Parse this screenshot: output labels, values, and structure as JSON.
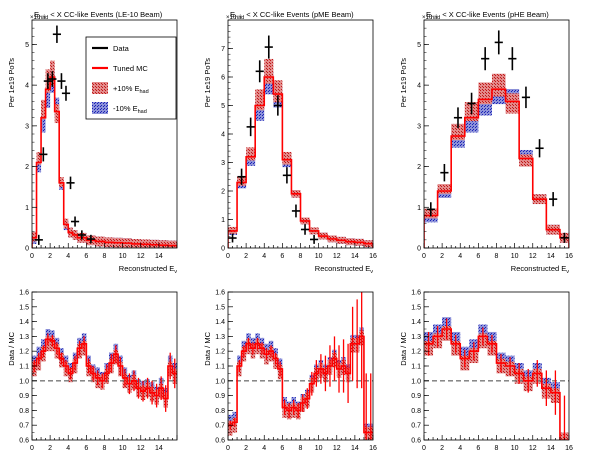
{
  "chart_data": [
    {
      "panel": "top-left",
      "type": "line",
      "title": "E_had < X CC-like Events (LE-10 Beam)",
      "title_parts": [
        "E",
        "had",
        " < X CC-like Events (LE-10 Beam)"
      ],
      "xlabel": "Reconstructed E",
      "xlabel_sub": "ν",
      "ylabel": "Per 1e19 PoTs",
      "y_exponent": "×10⁻³",
      "xlim": [
        0,
        16
      ],
      "ylim": [
        0,
        5.6
      ],
      "xticks": [
        0,
        2,
        4,
        6,
        8,
        10,
        12,
        14
      ],
      "yticks": [
        0,
        1,
        2,
        3,
        4,
        5
      ],
      "legend": {
        "placement": "top-right",
        "entries": [
          "Data",
          "Tuned MC",
          "+10% E_had",
          "-10% E_had"
        ],
        "entry_parts": [
          [
            "Data",
            ""
          ],
          [
            "Tuned MC",
            ""
          ],
          [
            "+10% E",
            "had"
          ],
          [
            "-10% E",
            "had"
          ]
        ]
      },
      "edges": [
        0,
        0.5,
        1,
        1.5,
        2,
        2.5,
        3,
        3.5,
        4,
        4.5,
        5,
        6,
        7,
        8,
        9,
        10,
        11,
        12,
        13,
        14,
        15,
        16
      ],
      "series": [
        {
          "name": "Data",
          "x": [
            0.75,
            1.25,
            1.75,
            2.25,
            2.75,
            3.25,
            3.75,
            4.25,
            4.75,
            5.5,
            6.5
          ],
          "values": [
            0.2,
            2.3,
            4.1,
            4.15,
            5.25,
            4.1,
            3.8,
            1.6,
            0.65,
            0.32,
            0.22
          ],
          "err": [
            0.05,
            0.1,
            0.12,
            0.12,
            0.14,
            0.12,
            0.11,
            0.08,
            0.05,
            0.04,
            0.03
          ]
        },
        {
          "name": "Tuned MC",
          "values": [
            0.25,
            2.1,
            3.2,
            3.9,
            4.2,
            3.35,
            1.6,
            0.58,
            0.38,
            0.32,
            0.25,
            0.19,
            0.16,
            0.14,
            0.13,
            0.12,
            0.1,
            0.09,
            0.08,
            0.07,
            0.06
          ]
        },
        {
          "name": "+10% E_had",
          "values": [
            0.28,
            2.2,
            3.4,
            4.1,
            4.3,
            3.3,
            1.62,
            0.6,
            0.38,
            0.32,
            0.25,
            0.19,
            0.16,
            0.14,
            0.13,
            0.12,
            0.1,
            0.09,
            0.08,
            0.07,
            0.06
          ]
        },
        {
          "name": "-10% E_had",
          "values": [
            0.22,
            2.0,
            3.05,
            3.7,
            4.1,
            3.45,
            1.55,
            0.56,
            0.38,
            0.32,
            0.25,
            0.19,
            0.16,
            0.14,
            0.13,
            0.12,
            0.1,
            0.09,
            0.08,
            0.07,
            0.06
          ]
        }
      ]
    },
    {
      "panel": "top-middle",
      "type": "line",
      "title": "E_had < X CC-like Events (pME Beam)",
      "title_parts": [
        "E",
        "had",
        " < X CC-like Events (pME Beam)"
      ],
      "xlabel": "Reconstructed E",
      "xlabel_sub": "ν",
      "ylabel": "Per 1e19 PoTs",
      "y_exponent": "×10⁻³",
      "xlim": [
        0,
        16
      ],
      "ylim": [
        0,
        8.0
      ],
      "xticks": [
        0,
        2,
        4,
        6,
        8,
        10,
        12,
        14,
        16
      ],
      "yticks": [
        0,
        1,
        2,
        3,
        4,
        5,
        6,
        7
      ],
      "edges": [
        0,
        1,
        2,
        3,
        4,
        5,
        6,
        7,
        8,
        9,
        10,
        11,
        12,
        13,
        14,
        15,
        16
      ],
      "series": [
        {
          "name": "Data",
          "x": [
            0.5,
            1.5,
            2.5,
            3.5,
            4.5,
            5.5,
            6.5,
            7.5,
            8.5,
            9.5
          ],
          "values": [
            0.35,
            2.5,
            4.25,
            6.2,
            7.05,
            5.0,
            2.55,
            1.3,
            0.65,
            0.3
          ],
          "err": [
            0.05,
            0.18,
            0.22,
            0.28,
            0.3,
            0.25,
            0.18,
            0.12,
            0.08,
            0.05
          ]
        },
        {
          "name": "Tuned MC",
          "values": [
            0.6,
            2.3,
            3.2,
            5.0,
            6.0,
            5.4,
            3.1,
            1.9,
            0.95,
            0.6,
            0.42,
            0.32,
            0.27,
            0.22,
            0.2,
            0.15
          ]
        },
        {
          "name": "+10% E_had",
          "values": [
            0.62,
            2.35,
            3.3,
            5.2,
            6.2,
            5.5,
            3.15,
            1.9,
            0.95,
            0.6,
            0.42,
            0.32,
            0.27,
            0.22,
            0.2,
            0.15
          ]
        },
        {
          "name": "-10% E_had",
          "values": [
            0.58,
            2.25,
            3.1,
            4.8,
            5.8,
            5.3,
            3.05,
            1.9,
            0.95,
            0.6,
            0.42,
            0.32,
            0.27,
            0.22,
            0.2,
            0.15
          ]
        }
      ]
    },
    {
      "panel": "top-right",
      "type": "line",
      "title": "E_had < X CC-like Events (pHE Beam)",
      "title_parts": [
        "E",
        "had",
        " < X CC-like Events (pHE Beam)"
      ],
      "xlabel": "Reconstructed E",
      "xlabel_sub": "ν",
      "ylabel": "Per 1e19 PoTs",
      "y_exponent": "×10⁻³",
      "xlim": [
        0,
        16
      ],
      "ylim": [
        0,
        5.6
      ],
      "xticks": [
        0,
        2,
        4,
        6,
        8,
        10,
        12,
        14,
        16
      ],
      "yticks": [
        0,
        1,
        2,
        3,
        4,
        5
      ],
      "edges": [
        0,
        1.5,
        3,
        4.5,
        6,
        7.5,
        9,
        10.5,
        12,
        13.5,
        15,
        16
      ],
      "series": [
        {
          "name": "Data",
          "x": [
            0.75,
            2.25,
            3.75,
            5.25,
            6.75,
            8.25,
            9.75,
            11.25,
            12.75,
            14.25,
            15.5
          ],
          "values": [
            0.95,
            1.85,
            3.2,
            3.55,
            4.65,
            5.05,
            4.65,
            3.7,
            2.45,
            1.2,
            0.25
          ],
          "err": [
            0.1,
            0.14,
            0.18,
            0.19,
            0.21,
            0.22,
            0.21,
            0.19,
            0.15,
            0.1,
            0.05
          ]
        },
        {
          "name": "Tuned MC",
          "values": [
            0.8,
            1.4,
            2.75,
            3.2,
            3.65,
            3.9,
            3.6,
            2.2,
            1.2,
            0.45,
            0.25
          ]
        },
        {
          "name": "+10% E_had",
          "values": [
            0.85,
            1.45,
            2.85,
            3.35,
            3.8,
            4.0,
            3.55,
            2.15,
            1.2,
            0.45,
            0.25
          ]
        },
        {
          "name": "-10% E_had",
          "values": [
            0.75,
            1.35,
            2.65,
            3.05,
            3.5,
            3.8,
            3.65,
            2.25,
            1.2,
            0.45,
            0.25
          ]
        }
      ]
    },
    {
      "panel": "bottom-left",
      "type": "line",
      "ylabel": "Data / MC",
      "xlim": [
        0,
        16
      ],
      "ylim": [
        0.6,
        1.6
      ],
      "xticks": [
        0,
        2,
        4,
        6,
        8,
        10,
        12,
        14
      ],
      "yticks": [
        0.6,
        0.7,
        0.8,
        0.9,
        1.0,
        1.1,
        1.2,
        1.3,
        1.4,
        1.5,
        1.6
      ],
      "reference_line": 1.0,
      "edges": [
        0,
        0.5,
        1,
        1.5,
        2,
        2.5,
        3,
        3.5,
        4,
        4.5,
        5,
        5.5,
        6,
        6.5,
        7,
        7.5,
        8,
        8.5,
        9,
        9.5,
        10,
        10.5,
        11,
        11.5,
        12,
        12.5,
        13,
        13.5,
        14,
        14.5,
        15,
        15.5,
        16
      ],
      "series": [
        {
          "name": "Data / Tuned MC",
          "values": [
            1.1,
            1.15,
            1.2,
            1.28,
            1.27,
            1.22,
            1.15,
            1.1,
            1.05,
            1.12,
            1.22,
            1.25,
            1.1,
            1.05,
            1.02,
            1.0,
            1.05,
            1.12,
            1.18,
            1.1,
            1.02,
            0.98,
            1.0,
            0.95,
            0.93,
            0.95,
            0.92,
            0.9,
            0.95,
            0.88,
            1.1,
            1.05
          ],
          "err": [
            0.04,
            0.04,
            0.04,
            0.04,
            0.04,
            0.04,
            0.04,
            0.04,
            0.04,
            0.05,
            0.05,
            0.05,
            0.05,
            0.05,
            0.05,
            0.05,
            0.06,
            0.06,
            0.06,
            0.06,
            0.06,
            0.07,
            0.07,
            0.07,
            0.07,
            0.07,
            0.08,
            0.08,
            0.08,
            0.09,
            0.09,
            0.1
          ]
        },
        {
          "name": "+10% E_had",
          "values": [
            1.08,
            1.12,
            1.18,
            1.25,
            1.25,
            1.2,
            1.14,
            1.08,
            1.04,
            1.1,
            1.2,
            1.22,
            1.08,
            1.04,
            1.0,
            0.99,
            1.03,
            1.1,
            1.16,
            1.08,
            1.0,
            0.97,
            0.99,
            0.94,
            0.92,
            0.94,
            0.91,
            0.89,
            0.93,
            0.87,
            1.08,
            1.03
          ]
        },
        {
          "name": "-10% E_had",
          "values": [
            1.12,
            1.18,
            1.23,
            1.3,
            1.29,
            1.24,
            1.17,
            1.12,
            1.07,
            1.14,
            1.24,
            1.27,
            1.12,
            1.06,
            1.04,
            1.01,
            1.07,
            1.14,
            1.2,
            1.12,
            1.04,
            0.99,
            1.02,
            0.96,
            0.95,
            0.96,
            0.94,
            0.91,
            0.97,
            0.9,
            1.12,
            1.07
          ]
        }
      ]
    },
    {
      "panel": "bottom-middle",
      "type": "line",
      "ylabel": "Data / MC",
      "xlim": [
        0,
        16
      ],
      "ylim": [
        0.6,
        1.6
      ],
      "xticks": [
        0,
        2,
        4,
        6,
        8,
        10,
        12,
        14,
        16
      ],
      "yticks": [
        0.6,
        0.7,
        0.8,
        0.9,
        1.0,
        1.1,
        1.2,
        1.3,
        1.4,
        1.5,
        1.6
      ],
      "reference_line": 1.0,
      "edges": [
        0,
        0.5,
        1,
        1.5,
        2,
        2.5,
        3,
        3.5,
        4,
        4.5,
        5,
        5.5,
        6,
        6.5,
        7,
        7.5,
        8,
        8.5,
        9,
        9.5,
        10,
        10.5,
        11,
        11.5,
        12,
        12.5,
        13,
        13.5,
        14,
        14.5,
        15,
        15.5,
        16
      ],
      "series": [
        {
          "name": "Data / Tuned MC",
          "values": [
            0.7,
            0.72,
            1.1,
            1.2,
            1.25,
            1.22,
            1.25,
            1.22,
            1.18,
            1.2,
            1.15,
            1.08,
            0.82,
            0.8,
            0.82,
            0.8,
            0.85,
            0.88,
            0.98,
            1.05,
            1.08,
            1.05,
            1.1,
            1.15,
            1.08,
            1.1,
            1.05,
            1.25,
            1.25,
            1.3,
            0.65,
            0.65
          ],
          "err": [
            0.03,
            0.03,
            0.04,
            0.04,
            0.04,
            0.04,
            0.04,
            0.04,
            0.04,
            0.04,
            0.04,
            0.05,
            0.05,
            0.05,
            0.05,
            0.05,
            0.06,
            0.07,
            0.08,
            0.09,
            0.1,
            0.12,
            0.14,
            0.15,
            0.16,
            0.18,
            0.2,
            0.25,
            0.3,
            0.35,
            0.4,
            0.4
          ]
        },
        {
          "name": "+10% E_had",
          "values": [
            0.68,
            0.7,
            1.08,
            1.18,
            1.23,
            1.2,
            1.23,
            1.2,
            1.16,
            1.18,
            1.13,
            1.06,
            0.8,
            0.79,
            0.8,
            0.79,
            0.84,
            0.87,
            0.97,
            1.04,
            1.07,
            1.04,
            1.09,
            1.14,
            1.07,
            1.09,
            1.04,
            1.24,
            1.24,
            1.29,
            0.64,
            0.64
          ]
        },
        {
          "name": "-10% E_had",
          "values": [
            0.72,
            0.74,
            1.12,
            1.22,
            1.27,
            1.24,
            1.27,
            1.24,
            1.2,
            1.22,
            1.17,
            1.1,
            0.84,
            0.81,
            0.84,
            0.81,
            0.86,
            0.89,
            0.99,
            1.06,
            1.09,
            1.06,
            1.11,
            1.16,
            1.09,
            1.11,
            1.06,
            1.26,
            1.26,
            1.31,
            0.66,
            0.66
          ]
        }
      ]
    },
    {
      "panel": "bottom-right",
      "type": "line",
      "ylabel": "Data / MC",
      "xlim": [
        0,
        16
      ],
      "ylim": [
        0.6,
        1.6
      ],
      "xticks": [
        0,
        2,
        4,
        6,
        8,
        10,
        12,
        14,
        16
      ],
      "yticks": [
        0.6,
        0.7,
        0.8,
        0.9,
        1.0,
        1.1,
        1.2,
        1.3,
        1.4,
        1.5,
        1.6
      ],
      "reference_line": 1.0,
      "edges": [
        0,
        1,
        2,
        3,
        4,
        5,
        6,
        7,
        8,
        9,
        10,
        11,
        12,
        13,
        14,
        15,
        16
      ],
      "series": [
        {
          "name": "Data / Tuned MC",
          "values": [
            1.25,
            1.3,
            1.35,
            1.25,
            1.15,
            1.2,
            1.3,
            1.25,
            1.12,
            1.1,
            1.05,
            1.0,
            1.05,
            0.95,
            0.92,
            0.6
          ],
          "err": [
            0.08,
            0.07,
            0.07,
            0.06,
            0.06,
            0.06,
            0.06,
            0.06,
            0.06,
            0.06,
            0.07,
            0.08,
            0.09,
            0.12,
            0.15,
            0.3
          ]
        },
        {
          "name": "+10% E_had",
          "values": [
            1.22,
            1.27,
            1.32,
            1.22,
            1.12,
            1.17,
            1.27,
            1.22,
            1.1,
            1.08,
            1.03,
            0.98,
            1.03,
            0.93,
            0.9,
            0.6
          ]
        },
        {
          "name": "-10% E_had",
          "values": [
            1.28,
            1.33,
            1.38,
            1.28,
            1.18,
            1.23,
            1.33,
            1.28,
            1.14,
            1.12,
            1.07,
            1.02,
            1.07,
            0.97,
            0.94,
            0.6
          ]
        }
      ]
    }
  ],
  "colors": {
    "data": "#000000",
    "tuned_mc": "#ff0000",
    "plus_hatch": "#cc2222",
    "minus_hatch": "#2233cc",
    "reference_line": "#777777"
  }
}
